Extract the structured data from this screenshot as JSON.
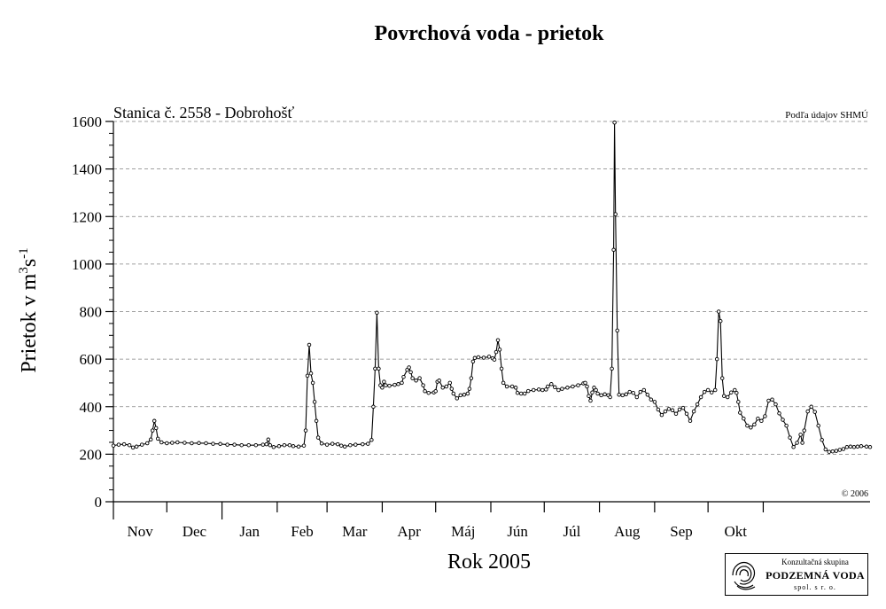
{
  "page_title": "Povrchová voda - prietok",
  "chart_data": {
    "type": "line",
    "title": "Povrchová voda - prietok",
    "subtitle": "Stanica č. 2558 - Dobrohošť",
    "source_note": "Podľa údajov SHMÚ",
    "copyright": "© 2006",
    "xlabel": "Rok 2005",
    "ylabel_prefix": "Prietok v m",
    "ylabel_sup1": "3",
    "ylabel_mid": "s",
    "ylabel_sup2": "-1",
    "ylim": [
      0,
      1600
    ],
    "yticks": [
      0,
      200,
      400,
      600,
      800,
      1000,
      1200,
      1400,
      1600
    ],
    "grid": "horizontal dashed",
    "months": [
      "Nov",
      "Dec",
      "Jan",
      "Feb",
      "Mar",
      "Apr",
      "Máj",
      "Jún",
      "Júl",
      "Aug",
      "Sep",
      "Okt"
    ],
    "x_unit": "day since 1 Nov 2004",
    "series": [
      {
        "name": "",
        "color": "#000000",
        "points": [
          [
            0,
            236
          ],
          [
            3,
            240
          ],
          [
            6,
            242
          ],
          [
            9,
            238
          ],
          [
            11,
            228
          ],
          [
            13,
            232
          ],
          [
            16,
            240
          ],
          [
            19,
            246
          ],
          [
            21,
            262
          ],
          [
            22,
            300
          ],
          [
            23,
            340
          ],
          [
            24,
            310
          ],
          [
            25,
            265
          ],
          [
            27,
            250
          ],
          [
            30,
            246
          ],
          [
            33,
            248
          ],
          [
            36,
            250
          ],
          [
            40,
            248
          ],
          [
            44,
            246
          ],
          [
            48,
            247
          ],
          [
            52,
            246
          ],
          [
            56,
            244
          ],
          [
            60,
            243
          ],
          [
            64,
            240
          ],
          [
            68,
            240
          ],
          [
            72,
            238
          ],
          [
            76,
            238
          ],
          [
            80,
            238
          ],
          [
            84,
            240
          ],
          [
            86,
            242
          ],
          [
            87,
            262
          ],
          [
            88,
            238
          ],
          [
            90,
            230
          ],
          [
            93,
            234
          ],
          [
            96,
            238
          ],
          [
            99,
            238
          ],
          [
            101,
            234
          ],
          [
            104,
            232
          ],
          [
            107,
            236
          ],
          [
            108,
            300
          ],
          [
            109,
            530
          ],
          [
            110,
            660
          ],
          [
            111,
            540
          ],
          [
            112,
            500
          ],
          [
            113,
            420
          ],
          [
            114,
            340
          ],
          [
            115,
            270
          ],
          [
            117,
            245
          ],
          [
            120,
            240
          ],
          [
            123,
            244
          ],
          [
            126,
            242
          ],
          [
            128,
            236
          ],
          [
            130,
            232
          ],
          [
            133,
            238
          ],
          [
            136,
            240
          ],
          [
            140,
            242
          ],
          [
            143,
            244
          ],
          [
            145,
            260
          ],
          [
            146,
            400
          ],
          [
            147,
            560
          ],
          [
            148,
            795
          ],
          [
            149,
            560
          ],
          [
            150,
            490
          ],
          [
            151,
            480
          ],
          [
            152,
            505
          ],
          [
            153,
            490
          ],
          [
            155,
            488
          ],
          [
            158,
            492
          ],
          [
            160,
            495
          ],
          [
            162,
            500
          ],
          [
            163,
            525
          ],
          [
            165,
            555
          ],
          [
            166,
            565
          ],
          [
            167,
            545
          ],
          [
            168,
            520
          ],
          [
            170,
            510
          ],
          [
            172,
            520
          ],
          [
            174,
            490
          ],
          [
            175,
            465
          ],
          [
            177,
            458
          ],
          [
            180,
            460
          ],
          [
            181,
            465
          ],
          [
            182,
            505
          ],
          [
            183,
            510
          ],
          [
            185,
            480
          ],
          [
            187,
            485
          ],
          [
            189,
            500
          ],
          [
            190,
            475
          ],
          [
            191,
            455
          ],
          [
            193,
            435
          ],
          [
            195,
            448
          ],
          [
            197,
            450
          ],
          [
            199,
            455
          ],
          [
            200,
            475
          ],
          [
            201,
            520
          ],
          [
            202,
            590
          ],
          [
            203,
            605
          ],
          [
            205,
            608
          ],
          [
            208,
            606
          ],
          [
            211,
            610
          ],
          [
            213,
            604
          ],
          [
            214,
            598
          ],
          [
            215,
            630
          ],
          [
            216,
            680
          ],
          [
            217,
            640
          ],
          [
            218,
            560
          ],
          [
            219,
            500
          ],
          [
            221,
            485
          ],
          [
            224,
            485
          ],
          [
            226,
            480
          ],
          [
            227,
            458
          ],
          [
            229,
            455
          ],
          [
            231,
            455
          ],
          [
            233,
            466
          ],
          [
            236,
            470
          ],
          [
            239,
            472
          ],
          [
            241,
            470
          ],
          [
            243,
            472
          ],
          [
            244,
            485
          ],
          [
            246,
            495
          ],
          [
            248,
            482
          ],
          [
            250,
            470
          ],
          [
            252,
            475
          ],
          [
            255,
            480
          ],
          [
            258,
            485
          ],
          [
            261,
            490
          ],
          [
            264,
            498
          ],
          [
            265,
            500
          ],
          [
            266,
            485
          ],
          [
            267,
            445
          ],
          [
            268,
            425
          ],
          [
            269,
            460
          ],
          [
            270,
            480
          ],
          [
            271,
            470
          ],
          [
            272,
            455
          ],
          [
            274,
            448
          ],
          [
            276,
            452
          ],
          [
            278,
            448
          ],
          [
            279,
            440
          ],
          [
            280,
            560
          ],
          [
            281,
            1060
          ],
          [
            281.5,
            1595
          ],
          [
            282,
            1210
          ],
          [
            283,
            720
          ],
          [
            284,
            450
          ],
          [
            286,
            448
          ],
          [
            288,
            452
          ],
          [
            290,
            462
          ],
          [
            292,
            458
          ],
          [
            294,
            440
          ],
          [
            296,
            462
          ],
          [
            298,
            470
          ],
          [
            300,
            450
          ],
          [
            302,
            430
          ],
          [
            304,
            420
          ],
          [
            306,
            388
          ],
          [
            308,
            365
          ],
          [
            310,
            380
          ],
          [
            312,
            390
          ],
          [
            314,
            385
          ],
          [
            316,
            370
          ],
          [
            318,
            388
          ],
          [
            320,
            395
          ],
          [
            322,
            370
          ],
          [
            324,
            340
          ],
          [
            326,
            380
          ],
          [
            328,
            410
          ],
          [
            330,
            440
          ],
          [
            332,
            462
          ],
          [
            334,
            470
          ],
          [
            336,
            460
          ],
          [
            338,
            470
          ],
          [
            339,
            600
          ],
          [
            340,
            800
          ],
          [
            341,
            760
          ],
          [
            342,
            520
          ],
          [
            343,
            445
          ],
          [
            345,
            440
          ],
          [
            347,
            460
          ],
          [
            349,
            470
          ],
          [
            350,
            458
          ],
          [
            351,
            420
          ],
          [
            352,
            375
          ],
          [
            354,
            350
          ],
          [
            356,
            320
          ],
          [
            358,
            312
          ],
          [
            360,
            325
          ],
          [
            362,
            350
          ],
          [
            364,
            340
          ],
          [
            366,
            360
          ],
          [
            368,
            425
          ],
          [
            370,
            430
          ],
          [
            372,
            410
          ],
          [
            374,
            372
          ],
          [
            376,
            345
          ],
          [
            378,
            320
          ],
          [
            380,
            270
          ],
          [
            382,
            230
          ],
          [
            384,
            248
          ],
          [
            386,
            282
          ],
          [
            387,
            248
          ],
          [
            388,
            300
          ],
          [
            390,
            380
          ],
          [
            392,
            400
          ],
          [
            394,
            378
          ],
          [
            396,
            320
          ],
          [
            398,
            260
          ],
          [
            400,
            220
          ],
          [
            402,
            210
          ],
          [
            404,
            212
          ],
          [
            406,
            214
          ],
          [
            408,
            218
          ],
          [
            410,
            222
          ],
          [
            412,
            230
          ],
          [
            414,
            232
          ],
          [
            416,
            230
          ],
          [
            418,
            232
          ],
          [
            420,
            234
          ],
          [
            423,
            232
          ],
          [
            425,
            230
          ]
        ]
      }
    ]
  },
  "logo": {
    "top": "Konzultačná skupina",
    "main": "PODZEMNÁ VODA",
    "sub": "spol. s r. o."
  }
}
